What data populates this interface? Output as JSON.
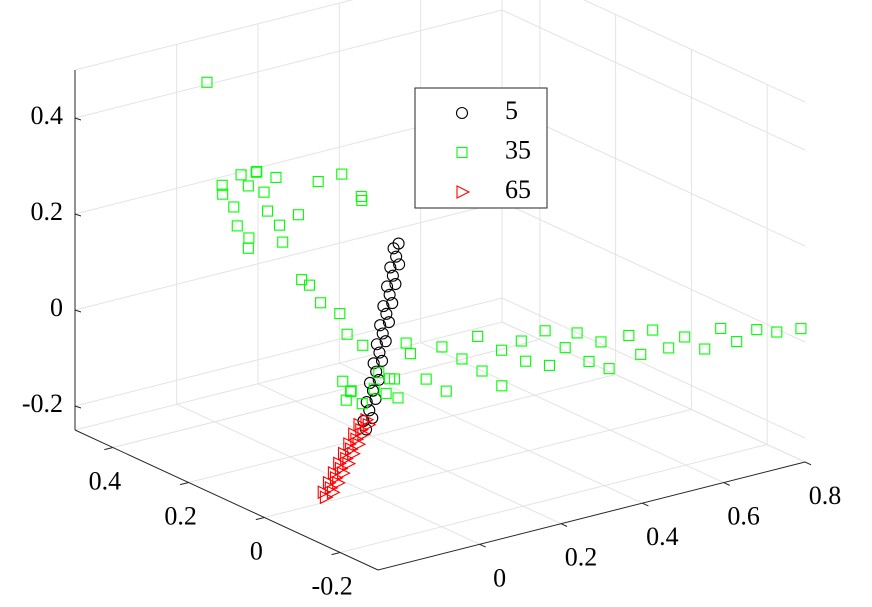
{
  "chart_data": {
    "type": "scatter3d",
    "xlim": [
      -0.25,
      0.8
    ],
    "xticks": [
      0,
      0.2,
      0.4,
      0.6,
      0.8
    ],
    "ylim": [
      -0.3,
      0.5
    ],
    "yticks": [
      -0.2,
      0,
      0.2,
      0.4
    ],
    "zlim": [
      -0.25,
      0.5
    ],
    "zticks": [
      -0.2,
      0,
      0.2,
      0.4
    ],
    "grid": true,
    "series": [
      {
        "name": "5",
        "color": "#000000",
        "marker": "o",
        "x": [
          0.0,
          0.003,
          0.006,
          0.008,
          0.011,
          0.014,
          0.017,
          0.019,
          0.022,
          0.025,
          0.028,
          0.03,
          0.033,
          0.036,
          0.039,
          0.041,
          0.044,
          0.047,
          0.05,
          0.052,
          0.055,
          0.058,
          0.061,
          0.063,
          0.066,
          0.069,
          0.072,
          0.074,
          0.077,
          0.08
        ],
        "y": [
          0,
          0.01,
          -0.01,
          0,
          0.01,
          -0.01,
          0,
          0.01,
          -0.01,
          0,
          0.01,
          -0.01,
          0,
          0.01,
          -0.01,
          0,
          0.01,
          -0.01,
          0,
          0.01,
          -0.01,
          0,
          0.01,
          -0.01,
          0,
          0.01,
          -0.01,
          0,
          0.01,
          0
        ],
        "z": [
          -0.12,
          -0.107,
          -0.094,
          -0.082,
          -0.069,
          -0.056,
          -0.043,
          -0.031,
          -0.018,
          -0.005,
          0.008,
          0.02,
          0.033,
          0.046,
          0.059,
          0.071,
          0.084,
          0.097,
          0.11,
          0.122,
          0.135,
          0.148,
          0.161,
          0.173,
          0.186,
          0.199,
          0.212,
          0.224,
          0.237,
          0.25
        ]
      },
      {
        "name": "35",
        "color": "#00ff00",
        "marker": "s",
        "x": [
          0.08,
          0.1,
          0.12,
          0.14,
          0.16,
          0.18,
          0.2,
          0.22,
          0.24,
          0.25,
          0.27,
          0.29,
          0.31,
          0.33,
          0.35,
          0.37,
          0.39,
          0.41,
          0.43,
          0.46,
          0.48,
          0.5,
          0.53,
          0.56,
          0.6,
          0.63,
          0.66,
          0.7,
          0.74,
          0.79,
          0.02,
          0,
          0.01,
          0,
          0.02,
          -0.01,
          0,
          0.01,
          0.03,
          0,
          0.02,
          0,
          0.01,
          -0.01,
          0,
          0.02,
          0.05,
          0.08,
          0.1,
          0.12,
          0,
          0.01,
          0,
          0.01,
          0,
          0.02,
          0,
          -0.03,
          -0.01,
          0,
          0.02,
          0.04,
          0.05,
          -0.02,
          0.06,
          0.01,
          0.03,
          0.07
        ],
        "y": [
          -0.02,
          -0.01,
          -0.03,
          -0.05,
          -0.04,
          -0.06,
          -0.08,
          -0.07,
          -0.1,
          -0.09,
          -0.12,
          -0.11,
          -0.14,
          -0.13,
          -0.15,
          -0.16,
          -0.17,
          -0.18,
          -0.18,
          -0.2,
          -0.21,
          -0.22,
          -0.23,
          -0.24,
          -0.25,
          -0.26,
          -0.27,
          -0.28,
          -0.29,
          -0.3,
          0.4,
          0.38,
          0.36,
          0.33,
          0.31,
          0.3,
          0.29,
          0.28,
          0.27,
          0.26,
          0.25,
          0.34,
          0.32,
          0.3,
          0.22,
          0.2,
          0.18,
          0.15,
          0.12,
          0.14,
          0.17,
          0.16,
          0.12,
          0.08,
          0.05,
          0.03,
          0.42,
          0.02,
          0.03,
          0.01,
          0,
          -0.01,
          0.02,
          0.04,
          -0.02,
          0.05,
          -0.03,
          0
        ],
        "z": [
          0.05,
          0.02,
          -0.03,
          0.04,
          -0.06,
          0.01,
          0.06,
          -0.02,
          0.03,
          -0.05,
          0.05,
          0.0,
          0.07,
          -0.01,
          0.03,
          0.06,
          0.0,
          0.04,
          -0.02,
          0.05,
          0.01,
          0.06,
          0.02,
          0.04,
          0.01,
          0.05,
          0.02,
          0.04,
          0.03,
          0.03,
          0.22,
          0.25,
          0.21,
          0.29,
          0.3,
          0.28,
          0.31,
          0.27,
          0.3,
          0.24,
          0.21,
          0.18,
          0.16,
          0.15,
          0.19,
          0.25,
          0.32,
          0.34,
          0.3,
          0.28,
          0.13,
          0.12,
          0.1,
          0.09,
          0.06,
          0.04,
          0.45,
          -0.06,
          -0.05,
          -0.07,
          -0.04,
          -0.05,
          -0.02,
          -0.03,
          -0.06,
          -0.06,
          -0.01,
          -0.03
        ]
      },
      {
        "name": "65",
        "color": "#ff0000",
        "marker": ">",
        "x": [
          -0.1,
          -0.096,
          -0.092,
          -0.088,
          -0.083,
          -0.079,
          -0.075,
          -0.071,
          -0.067,
          -0.063,
          -0.058,
          -0.054,
          -0.05,
          -0.046,
          -0.042,
          -0.038,
          -0.033,
          -0.029,
          -0.025,
          -0.021,
          -0.017,
          -0.013,
          -0.008,
          -0.004,
          0.0
        ],
        "y": [
          0,
          0.01,
          -0.01,
          0,
          0.01,
          -0.01,
          0,
          0.01,
          -0.01,
          0,
          0.01,
          -0.01,
          0,
          0.01,
          -0.01,
          0,
          0.01,
          -0.01,
          0,
          0.01,
          -0.01,
          0,
          0.01,
          -0.01,
          0
        ],
        "z": [
          -0.24,
          -0.234,
          -0.228,
          -0.223,
          -0.217,
          -0.211,
          -0.205,
          -0.199,
          -0.193,
          -0.188,
          -0.182,
          -0.176,
          -0.17,
          -0.164,
          -0.158,
          -0.153,
          -0.147,
          -0.141,
          -0.135,
          -0.129,
          -0.123,
          -0.118,
          -0.112,
          -0.106,
          -0.1
        ]
      }
    ]
  }
}
